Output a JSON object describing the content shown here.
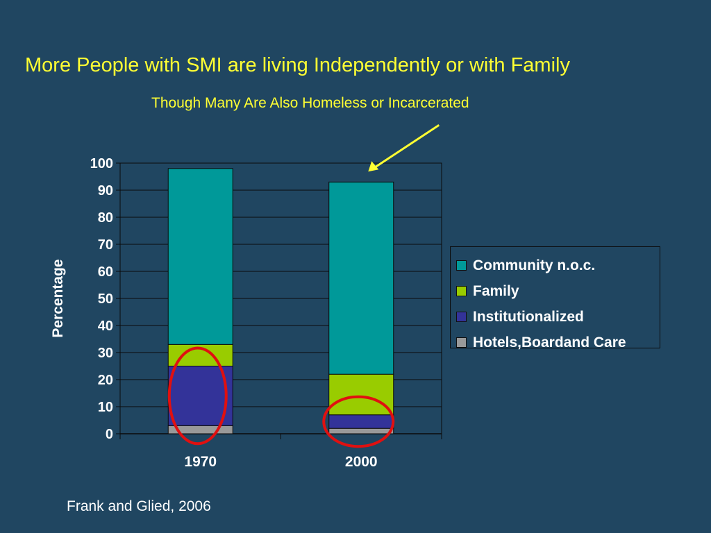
{
  "slide": {
    "title": "More People with SMI are living Independently or with Family",
    "subtitle": "Though Many Are Also Homeless or Incarcerated",
    "citation": "Frank and Glied, 2006"
  },
  "colors": {
    "background": "#204661",
    "title_text": "#ffff33",
    "annotation_arrow": "#ffff33",
    "highlight_circle": "#e01010"
  },
  "chart_data": {
    "type": "bar",
    "stacked": true,
    "categories": [
      "1970",
      "2000"
    ],
    "ylabel": "Percentage",
    "xlabel": "",
    "ylim": [
      0,
      100
    ],
    "yticks": [
      0,
      10,
      20,
      30,
      40,
      50,
      60,
      70,
      80,
      90,
      100
    ],
    "grid": true,
    "legend_position": "right",
    "series": [
      {
        "name": "Hotels,Boardand Care",
        "color": "#999999",
        "values": [
          3,
          2
        ]
      },
      {
        "name": "Institutionalized",
        "color": "#333399",
        "values": [
          22,
          5
        ]
      },
      {
        "name": "Family",
        "color": "#99cc00",
        "values": [
          8,
          15
        ]
      },
      {
        "name": "Community n.o.c.",
        "color": "#009999",
        "values": [
          65,
          71
        ]
      }
    ],
    "legend_order": [
      "Community n.o.c.",
      "Family",
      "Institutionalized",
      "Hotels,Boardand Care"
    ],
    "annotations": [
      {
        "kind": "arrow",
        "target_category": "2000"
      },
      {
        "kind": "circle",
        "target_category": "1970",
        "target_series": "Institutionalized"
      },
      {
        "kind": "circle",
        "target_category": "2000",
        "target_series": "Institutionalized"
      }
    ]
  }
}
